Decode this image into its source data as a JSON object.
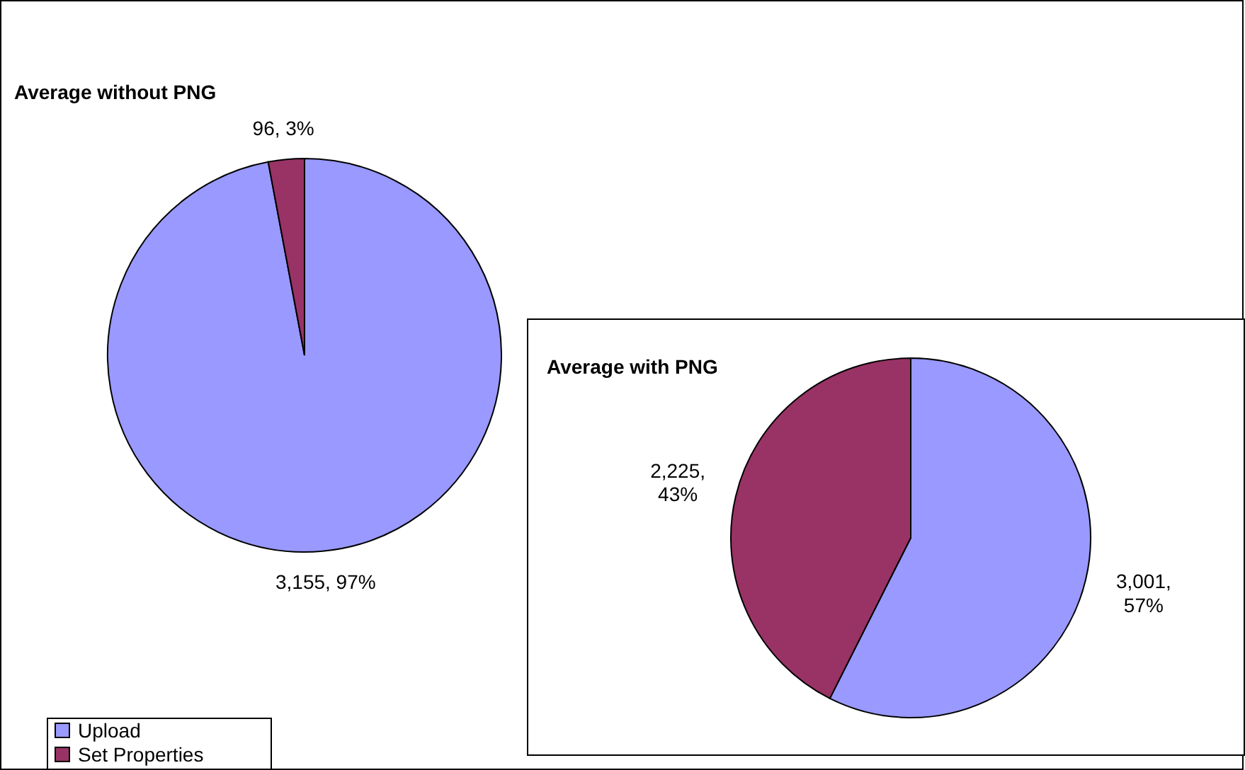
{
  "chart_data": [
    {
      "type": "pie",
      "title": "Average without PNG",
      "categories": [
        "Upload",
        "Set Properties"
      ],
      "values": [
        3155,
        96
      ],
      "colors": [
        "#9999ff",
        "#993366"
      ],
      "value_labels": [
        "3,155, 97%",
        "96, 3%"
      ],
      "legend": "bottom left"
    },
    {
      "type": "pie",
      "title": "Average with PNG",
      "categories": [
        null,
        null
      ],
      "values": [
        3001,
        2225
      ],
      "colors": [
        "#9999ff",
        "#993366"
      ],
      "value_labels": [
        "3,001, 57%",
        "2,225, 43%"
      ]
    }
  ]
}
